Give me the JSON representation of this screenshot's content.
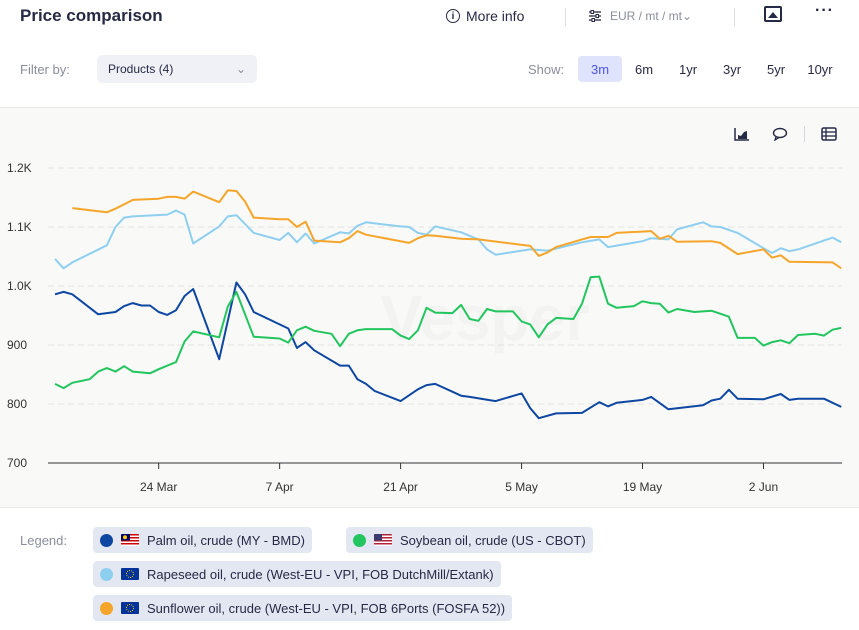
{
  "header": {
    "title": "Price comparison",
    "more_info": "More info",
    "unit": "EUR / mt / mt",
    "filter_label": "Filter by:",
    "filter_value": "Products (4)",
    "show_label": "Show:",
    "ranges": [
      "3m",
      "6m",
      "1yr",
      "3yr",
      "5yr",
      "10yr"
    ],
    "active_range": "3m"
  },
  "watermark": "Vesper",
  "legend": {
    "label": "Legend:",
    "items": [
      {
        "name": "Palm oil, crude (MY - BMD)",
        "color": "#0d47a1",
        "flag": "malaysia"
      },
      {
        "name": "Soybean oil, crude (US - CBOT)",
        "color": "#22c55e",
        "flag": "usa"
      },
      {
        "name": "Rapeseed oil, crude (West-EU - VPI, FOB DutchMill/Extank)",
        "color": "#8ecff0",
        "flag": "eu"
      },
      {
        "name": "Sunflower oil, crude (West-EU - VPI, FOB 6Ports (FOSFA 52))",
        "color": "#f5a52a",
        "flag": "eu"
      }
    ]
  },
  "chart_data": {
    "type": "line",
    "title": "Price comparison",
    "xlabel": "",
    "ylabel": "EUR / mt",
    "ylim": [
      700,
      1200
    ],
    "y_ticks": [
      {
        "v": 700,
        "label": "700"
      },
      {
        "v": 800,
        "label": "800"
      },
      {
        "v": 900,
        "label": "900"
      },
      {
        "v": 1000,
        "label": "1.0K"
      },
      {
        "v": 1100,
        "label": "1.1K"
      },
      {
        "v": 1200,
        "label": "1.2K"
      }
    ],
    "x_unit": "days since first data point",
    "xlim": [
      0,
      92
    ],
    "x_ticks": [
      {
        "day": 12,
        "label": "24 Mar"
      },
      {
        "day": 26,
        "label": "7 Apr"
      },
      {
        "day": 40,
        "label": "21 Apr"
      },
      {
        "day": 54,
        "label": "5 May"
      },
      {
        "day": 68,
        "label": "19 May"
      },
      {
        "day": 82,
        "label": "2 Jun"
      }
    ],
    "grid": true,
    "legend_position": "bottom",
    "series": [
      {
        "name": "Palm oil, crude (MY - BMD)",
        "color": "#0d47a1",
        "points": [
          [
            0,
            986
          ],
          [
            1,
            990
          ],
          [
            2,
            986
          ],
          [
            5,
            952
          ],
          [
            7,
            956
          ],
          [
            8,
            966
          ],
          [
            9,
            971
          ],
          [
            10,
            967
          ],
          [
            11,
            967
          ],
          [
            12,
            956
          ],
          [
            13,
            951
          ],
          [
            14,
            959
          ],
          [
            15,
            983
          ],
          [
            16,
            995
          ],
          [
            19,
            876
          ],
          [
            21,
            1006
          ],
          [
            22,
            986
          ],
          [
            23,
            956
          ],
          [
            26,
            935
          ],
          [
            27,
            928
          ],
          [
            28,
            895
          ],
          [
            29,
            905
          ],
          [
            30,
            891
          ],
          [
            33,
            865
          ],
          [
            34,
            865
          ],
          [
            35,
            842
          ],
          [
            36,
            834
          ],
          [
            37,
            822
          ],
          [
            40,
            805
          ],
          [
            42,
            825
          ],
          [
            43,
            832
          ],
          [
            44,
            834
          ],
          [
            47,
            814
          ],
          [
            48,
            812
          ],
          [
            51,
            805
          ],
          [
            54,
            818
          ],
          [
            55,
            793
          ],
          [
            56,
            776
          ],
          [
            58,
            784
          ],
          [
            61,
            785
          ],
          [
            63,
            803
          ],
          [
            64,
            796
          ],
          [
            65,
            802
          ],
          [
            68,
            807
          ],
          [
            69,
            812
          ],
          [
            71,
            791
          ],
          [
            75,
            798
          ],
          [
            76,
            806
          ],
          [
            77,
            809
          ],
          [
            78,
            824
          ],
          [
            79,
            809
          ],
          [
            82,
            808
          ],
          [
            84,
            817
          ],
          [
            85,
            807
          ],
          [
            86,
            809
          ],
          [
            89,
            809
          ],
          [
            91,
            795
          ]
        ]
      },
      {
        "name": "Soybean oil, crude (US - CBOT)",
        "color": "#22c55e",
        "points": [
          [
            0,
            834
          ],
          [
            1,
            827
          ],
          [
            2,
            836
          ],
          [
            4,
            842
          ],
          [
            5,
            855
          ],
          [
            6,
            861
          ],
          [
            7,
            855
          ],
          [
            8,
            864
          ],
          [
            9,
            855
          ],
          [
            11,
            852
          ],
          [
            12,
            859
          ],
          [
            14,
            871
          ],
          [
            15,
            906
          ],
          [
            16,
            923
          ],
          [
            19,
            913
          ],
          [
            20,
            965
          ],
          [
            21,
            990
          ],
          [
            23,
            914
          ],
          [
            26,
            911
          ],
          [
            27,
            904
          ],
          [
            28,
            925
          ],
          [
            29,
            931
          ],
          [
            30,
            924
          ],
          [
            32,
            919
          ],
          [
            33,
            898
          ],
          [
            34,
            919
          ],
          [
            35,
            925
          ],
          [
            36,
            927
          ],
          [
            39,
            927
          ],
          [
            40,
            916
          ],
          [
            41,
            910
          ],
          [
            42,
            925
          ],
          [
            43,
            963
          ],
          [
            44,
            955
          ],
          [
            46,
            954
          ],
          [
            47,
            968
          ],
          [
            48,
            944
          ],
          [
            49,
            941
          ],
          [
            50,
            961
          ],
          [
            51,
            957
          ],
          [
            53,
            957
          ],
          [
            54,
            940
          ],
          [
            55,
            935
          ],
          [
            56,
            913
          ],
          [
            57,
            935
          ],
          [
            58,
            946
          ],
          [
            60,
            944
          ],
          [
            61,
            970
          ],
          [
            62,
            1015
          ],
          [
            63,
            1016
          ],
          [
            64,
            970
          ],
          [
            65,
            963
          ],
          [
            67,
            966
          ],
          [
            68,
            974
          ],
          [
            69,
            971
          ],
          [
            70,
            970
          ],
          [
            71,
            955
          ],
          [
            72,
            961
          ],
          [
            74,
            956
          ],
          [
            76,
            958
          ],
          [
            77,
            953
          ],
          [
            78,
            948
          ],
          [
            79,
            912
          ],
          [
            81,
            912
          ],
          [
            82,
            899
          ],
          [
            83,
            905
          ],
          [
            84,
            908
          ],
          [
            85,
            903
          ],
          [
            86,
            917
          ],
          [
            88,
            919
          ],
          [
            89,
            916
          ],
          [
            90,
            926
          ],
          [
            91,
            929
          ]
        ]
      },
      {
        "name": "Rapeseed oil, crude (West-EU - VPI, FOB DutchMill/Extank)",
        "color": "#8ecff0",
        "points": [
          [
            0,
            1046
          ],
          [
            1,
            1030
          ],
          [
            2,
            1040
          ],
          [
            6,
            1069
          ],
          [
            7,
            1100
          ],
          [
            8,
            1116
          ],
          [
            9,
            1118
          ],
          [
            13,
            1121
          ],
          [
            14,
            1128
          ],
          [
            15,
            1121
          ],
          [
            16,
            1072
          ],
          [
            19,
            1101
          ],
          [
            20,
            1118
          ],
          [
            21,
            1120
          ],
          [
            23,
            1090
          ],
          [
            26,
            1078
          ],
          [
            27,
            1090
          ],
          [
            28,
            1074
          ],
          [
            29,
            1089
          ],
          [
            30,
            1072
          ],
          [
            33,
            1091
          ],
          [
            34,
            1089
          ],
          [
            35,
            1102
          ],
          [
            36,
            1108
          ],
          [
            40,
            1101
          ],
          [
            41,
            1100
          ],
          [
            42,
            1090
          ],
          [
            43,
            1087
          ],
          [
            44,
            1101
          ],
          [
            47,
            1091
          ],
          [
            49,
            1079
          ],
          [
            50,
            1062
          ],
          [
            51,
            1053
          ],
          [
            55,
            1062
          ],
          [
            57,
            1060
          ],
          [
            61,
            1074
          ],
          [
            63,
            1079
          ],
          [
            64,
            1066
          ],
          [
            68,
            1076
          ],
          [
            69,
            1081
          ],
          [
            71,
            1079
          ],
          [
            72,
            1096
          ],
          [
            75,
            1108
          ],
          [
            76,
            1101
          ],
          [
            77,
            1100
          ],
          [
            79,
            1090
          ],
          [
            82,
            1064
          ],
          [
            83,
            1056
          ],
          [
            84,
            1064
          ],
          [
            85,
            1059
          ],
          [
            86,
            1062
          ],
          [
            90,
            1082
          ],
          [
            91,
            1074
          ]
        ]
      },
      {
        "name": "Sunflower oil, crude (West-EU - VPI, FOB 6Ports (FOSFA 52))",
        "color": "#f5a52a",
        "points": [
          [
            2,
            1132
          ],
          [
            6,
            1125
          ],
          [
            7,
            1131
          ],
          [
            9,
            1146
          ],
          [
            12,
            1148
          ],
          [
            13,
            1151
          ],
          [
            14,
            1151
          ],
          [
            15,
            1148
          ],
          [
            16,
            1160
          ],
          [
            19,
            1142
          ],
          [
            20,
            1162
          ],
          [
            21,
            1161
          ],
          [
            22,
            1143
          ],
          [
            23,
            1116
          ],
          [
            26,
            1113
          ],
          [
            27,
            1113
          ],
          [
            28,
            1100
          ],
          [
            29,
            1109
          ],
          [
            30,
            1077
          ],
          [
            33,
            1074
          ],
          [
            34,
            1081
          ],
          [
            35,
            1093
          ],
          [
            36,
            1087
          ],
          [
            41,
            1073
          ],
          [
            42,
            1081
          ],
          [
            43,
            1086
          ],
          [
            44,
            1085
          ],
          [
            47,
            1080
          ],
          [
            49,
            1079
          ],
          [
            55,
            1068
          ],
          [
            56,
            1051
          ],
          [
            57,
            1057
          ],
          [
            58,
            1066
          ],
          [
            61,
            1079
          ],
          [
            62,
            1083
          ],
          [
            64,
            1083
          ],
          [
            65,
            1090
          ],
          [
            69,
            1093
          ],
          [
            70,
            1080
          ],
          [
            71,
            1085
          ],
          [
            72,
            1075
          ],
          [
            76,
            1076
          ],
          [
            77,
            1073
          ],
          [
            79,
            1054
          ],
          [
            82,
            1062
          ],
          [
            83,
            1048
          ],
          [
            84,
            1052
          ],
          [
            85,
            1041
          ],
          [
            90,
            1040
          ],
          [
            91,
            1030
          ]
        ]
      }
    ]
  }
}
